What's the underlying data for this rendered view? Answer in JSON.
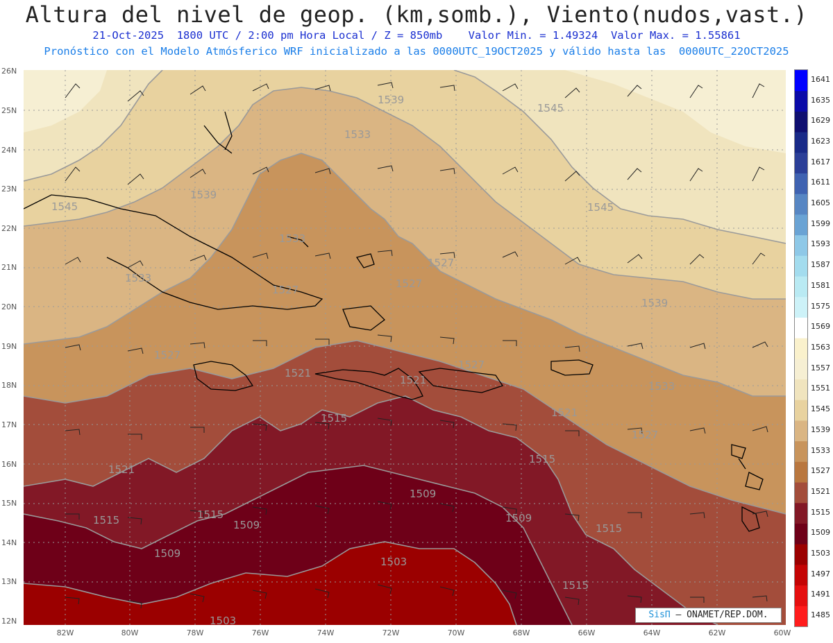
{
  "header": {
    "title": "Altura del nivel de geop. (km,somb.), Viento(nudos,vast.)",
    "subtitle1": "21-Oct-2025  1800 UTC / 2:00 pm Hora Local / Z = 850mb    Valor Min. = 1.49324  Valor Max. = 1.55861",
    "subtitle2": "Pronóstico con el Modelo Atmósferico WRF inicializado a las 0000UTC_19OCT2025 y válido hasta las  0000UTC_22OCT2025"
  },
  "map": {
    "lat_labels": [
      "26N",
      "25N",
      "24N",
      "23N",
      "22N",
      "21N",
      "20N",
      "19N",
      "18N",
      "17N",
      "16N",
      "15N",
      "14N",
      "13N",
      "12N"
    ],
    "lon_labels": [
      "82W",
      "80W",
      "78W",
      "76W",
      "74W",
      "72W",
      "70W",
      "68W",
      "66W",
      "64W",
      "62W",
      "60W"
    ],
    "contour_labels": [
      "1539",
      "1545",
      "1533",
      "1545",
      "1539",
      "1545",
      "1533",
      "1533",
      "1527",
      "1527",
      "1527",
      "1539",
      "1527",
      "1521",
      "1521",
      "1527",
      "1521",
      "1533",
      "1527",
      "1515",
      "1521",
      "1515",
      "1515",
      "1515",
      "1509",
      "1509",
      "1509",
      "1509",
      "1515",
      "1503",
      "1515",
      "1503"
    ]
  },
  "colorbar": {
    "levels": [
      "1485",
      "1491",
      "1497",
      "1503",
      "1509",
      "1515",
      "1521",
      "1527",
      "1533",
      "1539",
      "1545",
      "1551",
      "1557",
      "1563",
      "1569",
      "1575",
      "1581",
      "1587",
      "1593",
      "1599",
      "1605",
      "1611",
      "1617",
      "1623",
      "1629",
      "1635",
      "1641"
    ],
    "colors": [
      "#ff1c1c",
      "#e50f0f",
      "#c40404",
      "#9b0000",
      "#6e0018",
      "#821826",
      "#a34d3b",
      "#b9773f",
      "#c8945c",
      "#dab583",
      "#e8d29f",
      "#f0e4be",
      "#f6efd3",
      "#faf1cc",
      "#ffffff",
      "#cdf2f8",
      "#b9eaf3",
      "#a3dcee",
      "#8ec8e7",
      "#6aa3d4",
      "#5786c3",
      "#3f62b1",
      "#2b3f98",
      "#192a88",
      "#0f0f70",
      "#0a0aa8",
      "#0000ff"
    ]
  },
  "credit": {
    "brand": "SisΠ",
    "text": " – ONAMET/REP.DOM."
  }
}
